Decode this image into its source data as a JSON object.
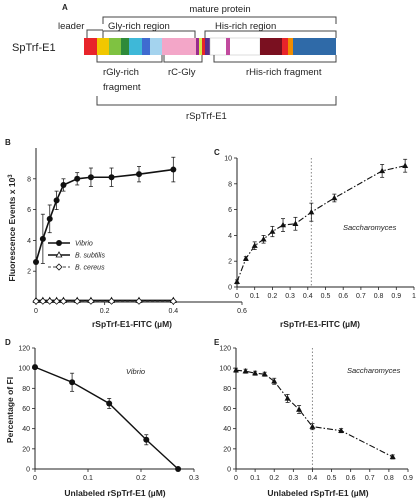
{
  "figure": {
    "panel_labels": [
      "A",
      "B",
      "C",
      "D",
      "E"
    ],
    "panel_a": {
      "protein": "SpTrf-E1",
      "mature_label": "mature protein",
      "leader_label": "leader",
      "gly_label": "Gly-rich region",
      "his_label": "His-rich region",
      "frag1_line1": "rGly-rich",
      "frag1_line2": "fragment",
      "frag2": "rC-Gly",
      "frag3": "rHis-rich fragment",
      "full_label": "rSpTrf-E1",
      "colors": {
        "gly_text": "#e07b00",
        "his_text": "#2a3bbf"
      }
    }
  },
  "chart_data": [
    {
      "panel": "B",
      "type": "line",
      "xlabel": "rSpTrf-E1-FITC (µM)",
      "ylabel": "Fluorescence Events x 10",
      "ylabel_sup": "3",
      "xlim": [
        0,
        0.6
      ],
      "xticks": [
        "0",
        "0.2",
        "0.4",
        "0.6"
      ],
      "ylim": [
        0,
        10
      ],
      "yticks": [
        "2",
        "4",
        "6",
        "8"
      ],
      "legend_position": "center",
      "series": [
        {
          "name": "Vibrio",
          "x": [
            0,
            0.02,
            0.04,
            0.06,
            0.08,
            0.12,
            0.16,
            0.22,
            0.3,
            0.4
          ],
          "y": [
            2.6,
            4.1,
            5.4,
            6.6,
            7.6,
            8.0,
            8.1,
            8.1,
            8.3,
            8.6
          ],
          "err": [
            0.1,
            1.6,
            0.9,
            0.6,
            0.4,
            0.4,
            0.6,
            0.6,
            0.5,
            0.8
          ]
        },
        {
          "name": "B. subtilis",
          "x": [
            0,
            0.02,
            0.04,
            0.06,
            0.08,
            0.12,
            0.16,
            0.22,
            0.3,
            0.4
          ],
          "y": [
            0.1,
            0.1,
            0.1,
            0.1,
            0.1,
            0.1,
            0.1,
            0.1,
            0.1,
            0.1
          ]
        },
        {
          "name": "B. cereus",
          "x": [
            0,
            0.02,
            0.04,
            0.06,
            0.08,
            0.12,
            0.16,
            0.22,
            0.3,
            0.4
          ],
          "y": [
            0.05,
            0.05,
            0.05,
            0.05,
            0.05,
            0.05,
            0.05,
            0.05,
            0.05,
            0.05
          ]
        }
      ]
    },
    {
      "panel": "C",
      "type": "line",
      "xlabel": "rSpTrf-E1-FITC (µM)",
      "ylabel": "",
      "xlim": [
        0,
        1
      ],
      "xticks": [
        "0",
        "0.1",
        "0.2",
        "0.3",
        "0.4",
        "0.5",
        "0.6",
        "0.7",
        "0.8",
        "0.9",
        "1"
      ],
      "ylim": [
        0,
        10
      ],
      "yticks": [
        "0",
        "2",
        "4",
        "6",
        "8",
        "10"
      ],
      "vline": 0.42,
      "annotation": "Saccharomyces",
      "series": [
        {
          "x": [
            0,
            0.05,
            0.1,
            0.15,
            0.2,
            0.26,
            0.33,
            0.42,
            0.55,
            0.82,
            0.95
          ],
          "y": [
            0.4,
            2.2,
            3.2,
            3.7,
            4.3,
            4.8,
            4.9,
            5.8,
            6.9,
            9.0,
            9.4
          ],
          "err": [
            0.15,
            0.15,
            0.3,
            0.3,
            0.4,
            0.5,
            0.5,
            0.7,
            0.3,
            0.5,
            0.5
          ]
        }
      ]
    },
    {
      "panel": "D",
      "type": "line",
      "xlabel": "Unlabeled rSpTrf-E1 (µM)",
      "ylabel": "Percentage of FI",
      "xlim": [
        0,
        0.3
      ],
      "xticks": [
        "0",
        "0.1",
        "0.2",
        "0.3"
      ],
      "ylim": [
        0,
        120
      ],
      "yticks": [
        "0",
        "20",
        "40",
        "60",
        "80",
        "100",
        "120"
      ],
      "annotation": "Vibrio",
      "series": [
        {
          "x": [
            0,
            0.07,
            0.14,
            0.21,
            0.27
          ],
          "y": [
            101,
            86,
            65,
            29,
            0
          ],
          "err": [
            2,
            9,
            5,
            5,
            0.5
          ]
        }
      ]
    },
    {
      "panel": "E",
      "type": "line",
      "xlabel": "Unlabeled rSpTrf-E1 (µM)",
      "ylabel": "",
      "xlim": [
        0,
        0.9
      ],
      "xticks": [
        "0",
        "0.1",
        "0.2",
        "0.3",
        "0.4",
        "0.5",
        "0.6",
        "0.7",
        "0.8",
        "0.9"
      ],
      "ylim": [
        0,
        120
      ],
      "yticks": [
        "0",
        "20",
        "40",
        "60",
        "80",
        "100",
        "120"
      ],
      "vline": 0.4,
      "annotation": "Saccharomyces",
      "series": [
        {
          "x": [
            0,
            0.05,
            0.1,
            0.15,
            0.2,
            0.27,
            0.33,
            0.4,
            0.55,
            0.82
          ],
          "y": [
            98,
            97,
            95,
            94,
            87,
            70,
            59,
            42,
            38,
            12
          ],
          "err": [
            2,
            2,
            2,
            2,
            3,
            4,
            4,
            3,
            2,
            2
          ]
        }
      ]
    }
  ]
}
